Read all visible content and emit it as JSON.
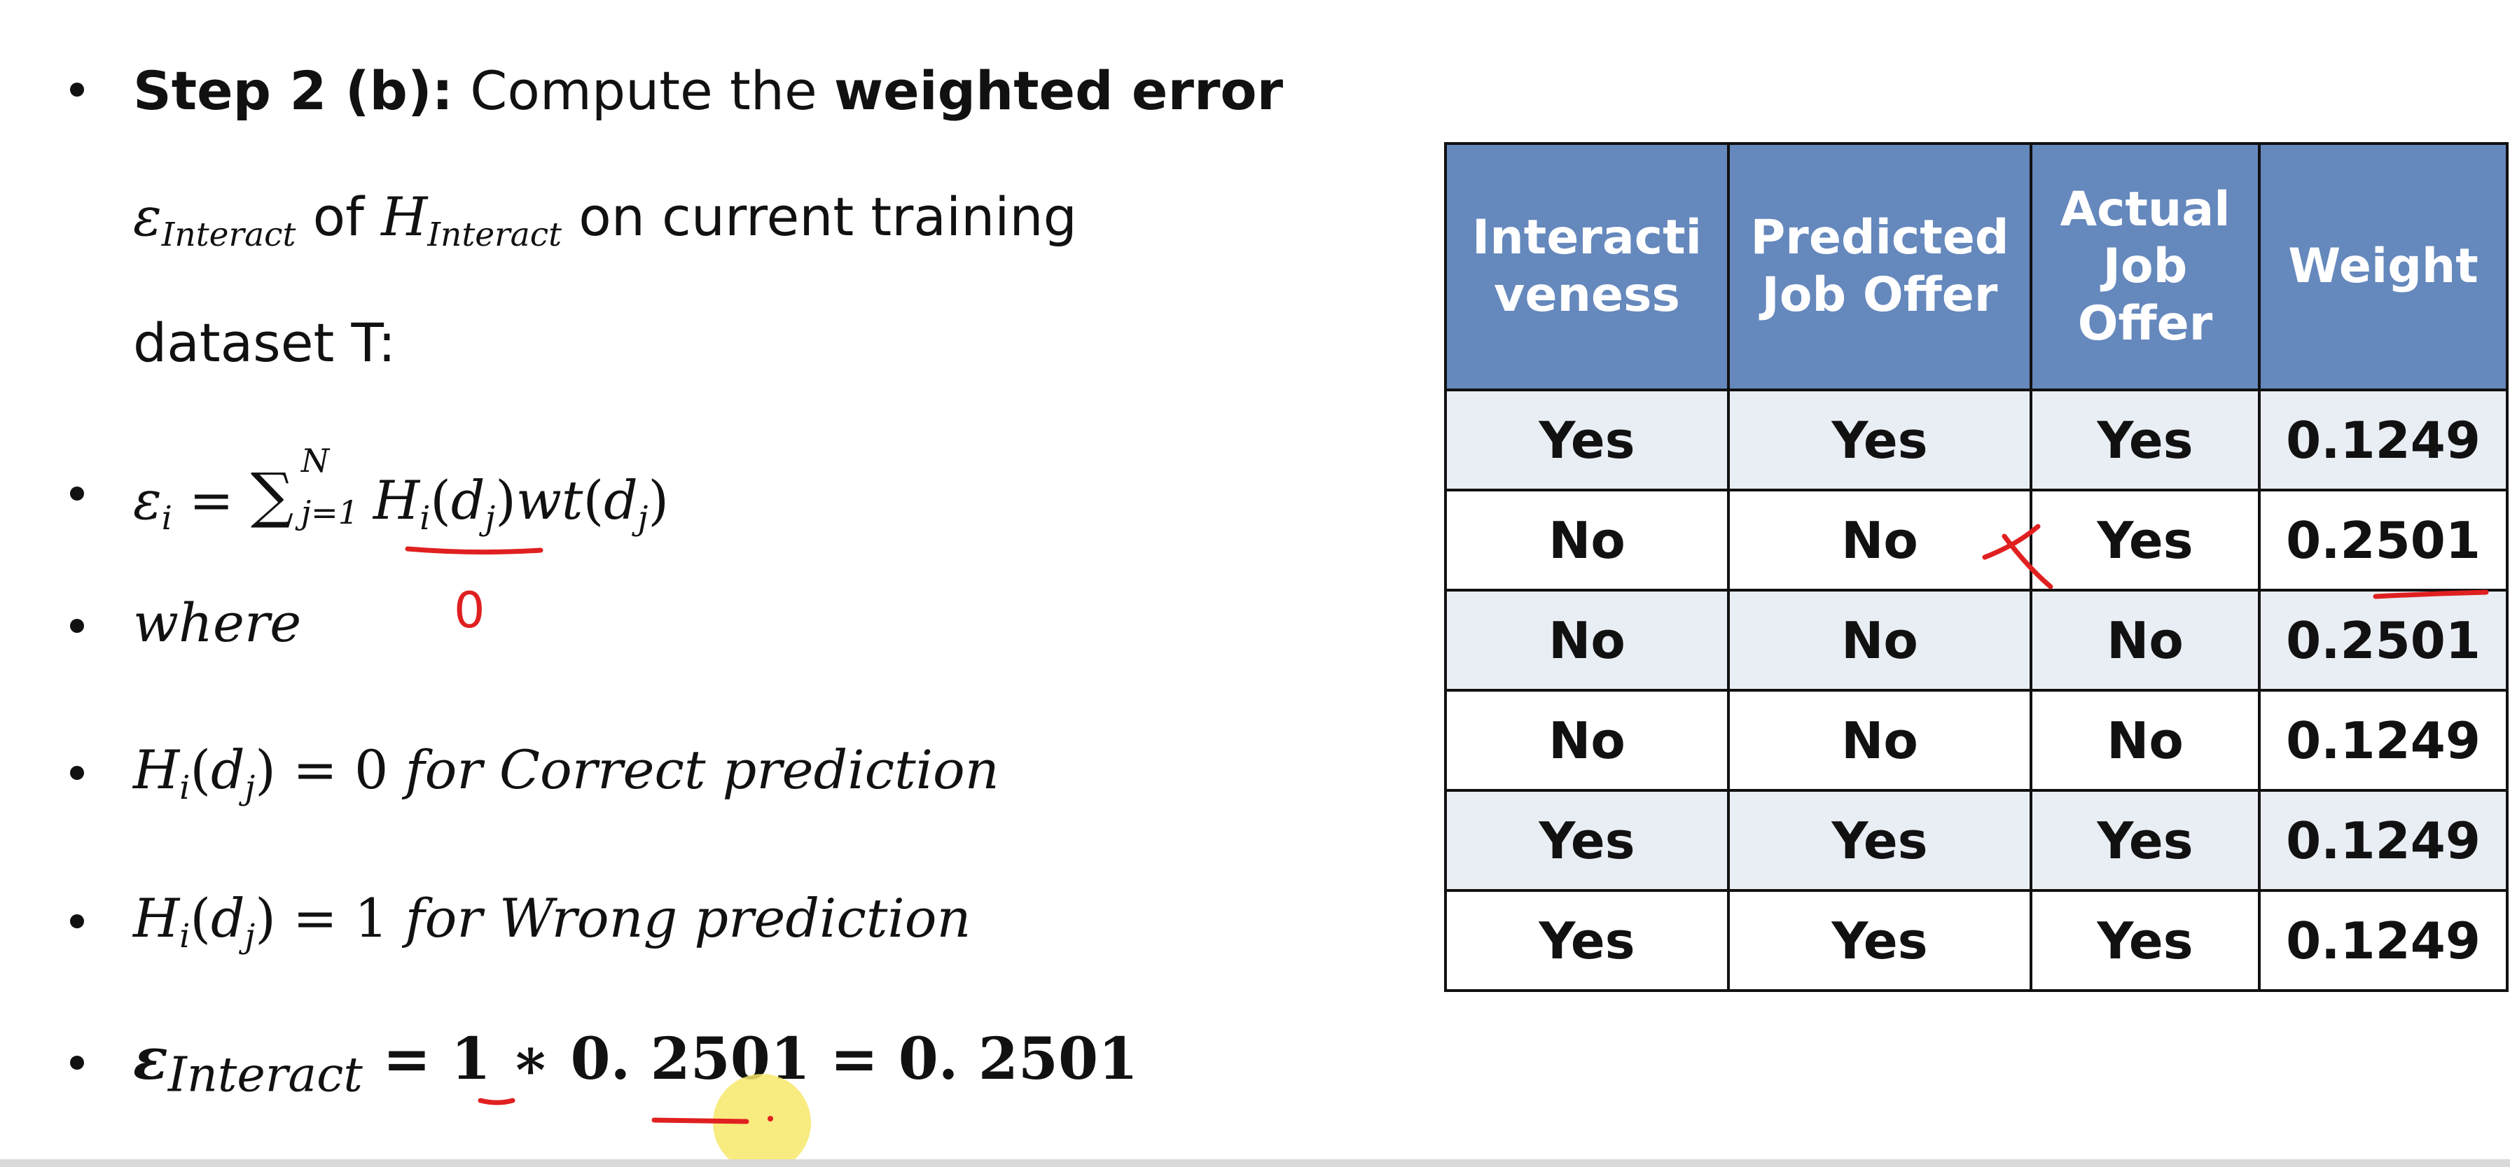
{
  "left": {
    "step": {
      "label": "Step 2 (b):",
      "text_before": "Compute the",
      "bold_text": "weighted error",
      "eps_sub": "Interact",
      "of_text": "of",
      "h_sub": "Interact",
      "text_after": "on current training",
      "line3": "dataset T:"
    },
    "formula": {
      "eps": "ε",
      "i": "i",
      "eq": "=",
      "sum": "∑",
      "top": "N",
      "bottom": "j=1",
      "h": "H",
      "d": "d",
      "j": "j",
      "wt": "wt"
    },
    "where": "where",
    "correct": {
      "value": "0",
      "text": "for Correct prediction"
    },
    "wrong": {
      "value": "1",
      "text": "for Wrong prediction"
    },
    "result": {
      "sub": "Interact",
      "expr": "= 1 ∗ 0. 2501 = 0. 2501"
    },
    "annotation_zero": "0"
  },
  "table": {
    "headers": [
      "Interacti veness",
      "Predicted Job Offer",
      "Actual Job Offer",
      "Weight"
    ],
    "rows": [
      [
        "Yes",
        "Yes",
        "Yes",
        "0.1249"
      ],
      [
        "No",
        "No",
        "Yes",
        "0.2501"
      ],
      [
        "No",
        "No",
        "No",
        "0.2501"
      ],
      [
        "No",
        "No",
        "No",
        "0.1249"
      ],
      [
        "Yes",
        "Yes",
        "Yes",
        "0.1249"
      ],
      [
        "Yes",
        "Yes",
        "Yes",
        "0.1249"
      ]
    ]
  },
  "colors": {
    "header_bg": "#6588bd",
    "row_band": "#e9edf4",
    "pen": "#e02020",
    "highlight": "#f7e86a"
  }
}
